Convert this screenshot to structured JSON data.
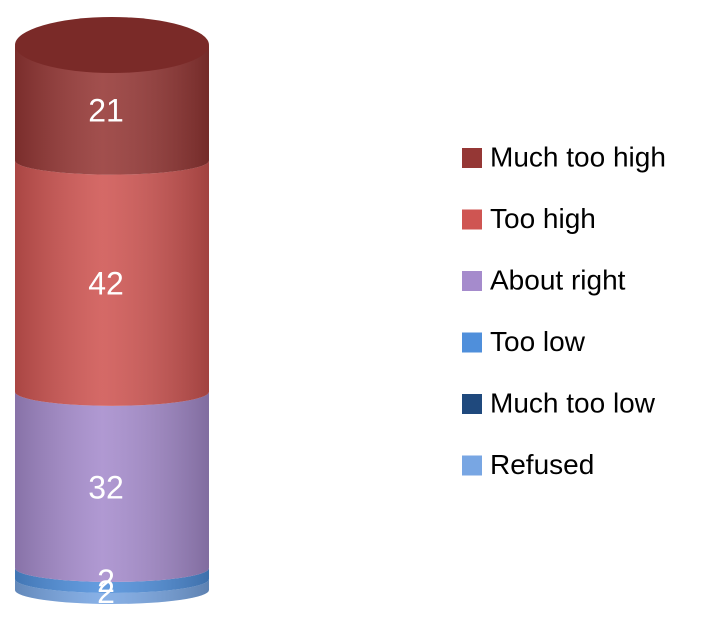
{
  "chart_data": {
    "type": "stacked-cylinder",
    "series": [
      {
        "name": "Much too high",
        "color": "#953735",
        "values": [
          21
        ]
      },
      {
        "name": "Too high",
        "color": "#cf5552",
        "values": [
          42
        ]
      },
      {
        "name": "About right",
        "color": "#a58bcc",
        "values": [
          32
        ]
      },
      {
        "name": "Too low",
        "color": "#4f8fdb",
        "values": [
          2
        ]
      },
      {
        "name": "Much too low",
        "color": "#1f497d",
        "values": [
          0
        ]
      },
      {
        "name": "Refused",
        "color": "#78a6e3",
        "values": [
          2
        ]
      }
    ],
    "legend": "right"
  }
}
